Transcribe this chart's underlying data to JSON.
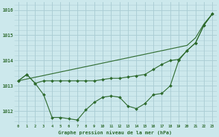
{
  "title": "Graphe pression niveau de la mer (hPa)",
  "background_color": "#cce8ec",
  "grid_color": "#aacdd4",
  "line_color": "#2d6a2d",
  "ylim": [
    1011.5,
    1016.3
  ],
  "yticks": [
    1012,
    1013,
    1014,
    1015,
    1016
  ],
  "figsize": [
    3.2,
    2.0
  ],
  "dpi": 100,
  "s1": [
    1013.2,
    1013.27,
    1013.34,
    1013.41,
    1013.48,
    1013.55,
    1013.62,
    1013.69,
    1013.76,
    1013.83,
    1013.9,
    1013.97,
    1014.04,
    1014.11,
    1014.18,
    1014.25,
    1014.32,
    1014.39,
    1014.46,
    1014.53,
    1014.6,
    1014.9,
    1015.45,
    1015.85
  ],
  "s2": [
    1013.2,
    1013.45,
    1013.1,
    1013.2,
    1013.2,
    1013.2,
    1013.2,
    1013.2,
    1013.2,
    1013.2,
    1013.25,
    1013.3,
    1013.3,
    1013.35,
    1013.4,
    1013.45,
    1013.65,
    1013.85,
    1014.0,
    1014.05,
    1014.4,
    1014.7,
    1015.4,
    1015.85
  ],
  "s3": [
    1013.2,
    1013.45,
    1013.1,
    1012.65,
    1011.75,
    1011.75,
    1011.7,
    1011.65,
    1012.05,
    1012.35,
    1012.55,
    1012.6,
    1012.55,
    1012.2,
    1012.1,
    1012.3,
    1012.65,
    1012.7,
    1013.0,
    1014.0,
    1014.4,
    1014.7,
    1015.4,
    1015.85
  ]
}
